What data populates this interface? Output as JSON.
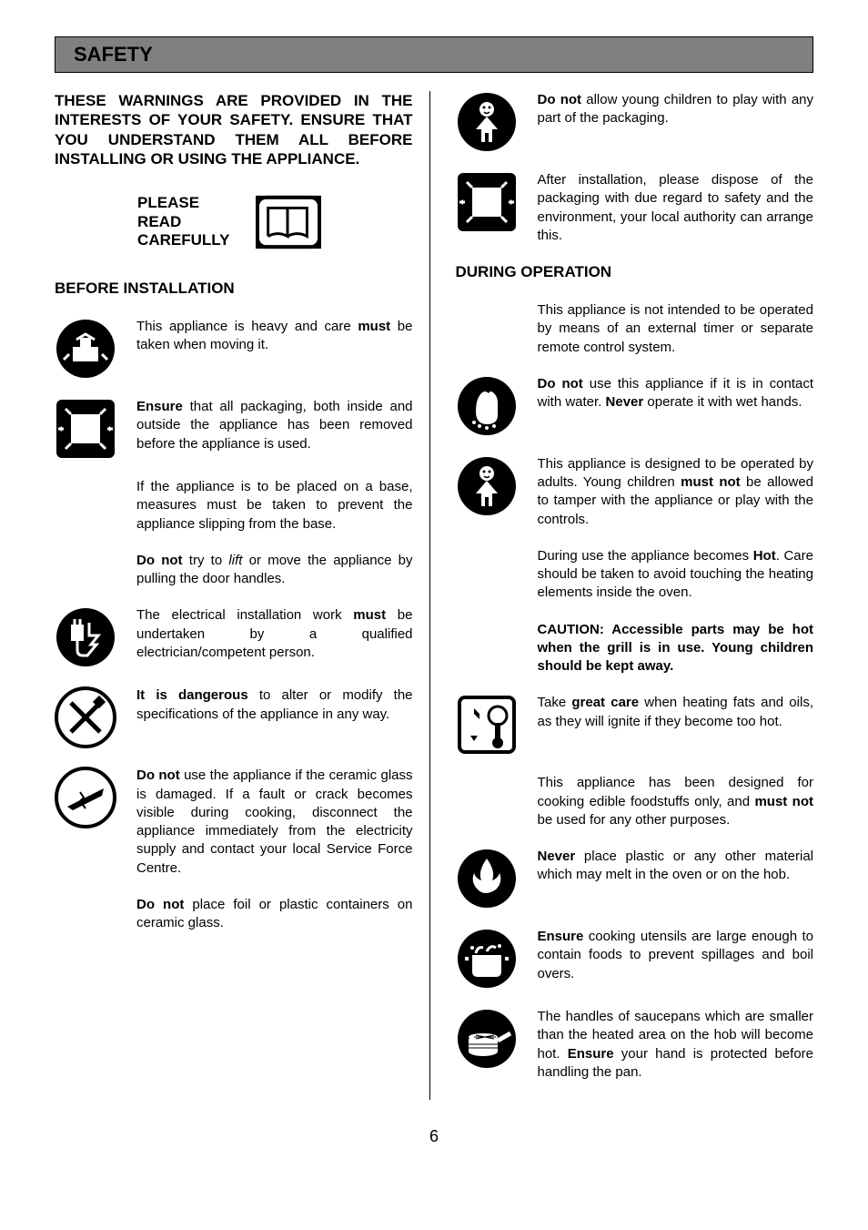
{
  "header": {
    "title": "SAFETY"
  },
  "intro": "THESE WARNINGS ARE PROVIDED IN THE INTERESTS OF YOUR SAFETY. ENSURE THAT YOU UNDERSTAND THEM ALL BEFORE INSTALLING OR USING THE APPLIANCE.",
  "read_label": "PLEASE READ CAREFULLY",
  "sections": {
    "before": "BEFORE INSTALLATION",
    "during": "DURING OPERATION"
  },
  "left": [
    {
      "html": "This appliance is heavy and care <span class='b'>must</span> be taken when moving it."
    },
    {
      "html": "<span class='b'>Ensure</span> that all packaging, both inside and outside the appliance has been removed before the appliance is used."
    },
    {
      "html": "If the appliance is to be placed on a base, measures must be taken to prevent the appliance slipping from the base."
    },
    {
      "html": "<span class='b'>Do not</span> try to <span class='i'>lift</span> or move the appliance by pulling the door handles."
    },
    {
      "html": "The electrical installation work <span class='b'>must</span> be undertaken by a qualified electrician/competent person."
    },
    {
      "html": "<span class='b'>It is dangerous</span> to alter or modify the specifications of the appliance in any way."
    },
    {
      "html": "<span class='b'>Do not</span> use the appliance if the ceramic glass is damaged. If a fault or crack becomes visible during cooking, disconnect the appliance immediately from the electricity supply and contact your local Service Force Centre."
    },
    {
      "html": "<span class='b'>Do not</span> place foil or plastic containers on ceramic glass."
    }
  ],
  "right": [
    {
      "html": "<span class='b'>Do not</span> allow young children to play with any part of the packaging."
    },
    {
      "html": "After installation, please dispose of the packaging with due regard to safety and the environment, your local authority can arrange this."
    },
    {
      "html": "This appliance is not intended to be operated by means of an external timer or separate remote control system."
    },
    {
      "html": "<span class='b'>Do not</span> use this appliance if it is in contact with water.  <span class='b'>Never</span> operate it with wet hands."
    },
    {
      "html": "This appliance is designed to be operated by adults.  Young children <span class='b'>must not</span> be allowed to tamper with the appliance or play with the controls."
    },
    {
      "html": "During use the appliance becomes <span class='b'>Hot</span>.  Care should be taken to avoid touching the heating elements inside the oven."
    },
    {
      "html": "<span class='b'>CAUTION: Accessible parts may be hot when the grill is in use. Young children should be kept away.</span>"
    },
    {
      "html": "Take <span class='b'>great care</span> when heating fats and oils, as they will ignite if they become too hot."
    },
    {
      "html": "This appliance has been designed for cooking edible foodstuffs only, and <span class='b'>must not</span> be used for any other purposes."
    },
    {
      "html": "<span class='b'>Never</span> place plastic or any other material which may melt in the oven or on the hob."
    },
    {
      "html": "<span class='b'>Ensure</span> cooking utensils are large enough to contain foods to prevent spillages and boil overs."
    },
    {
      "html": "The handles of saucepans which are smaller than the heated area on the hob will become hot.  <span class='b'>Ensure</span> your hand is protected before handling the pan."
    }
  ],
  "page_number": "6",
  "colors": {
    "header_bg": "#808080",
    "border": "#000000",
    "text": "#000000",
    "page_bg": "#ffffff"
  },
  "typography": {
    "body_family": "Arial",
    "heading_size_pt": 17,
    "body_size_pt": 15,
    "title_size_pt": 22
  }
}
